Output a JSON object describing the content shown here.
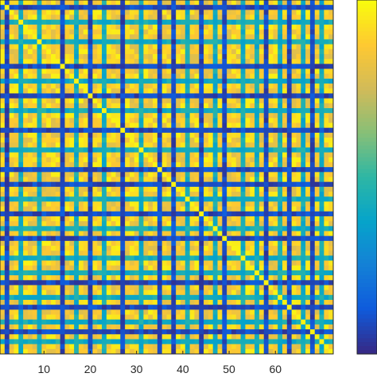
{
  "chart_data": {
    "type": "heatmap",
    "title": "",
    "xlabel": "",
    "ylabel": "",
    "n": 72,
    "x_ticks": [
      10,
      20,
      30,
      40,
      50,
      60
    ],
    "x_tick_labels": [
      "10",
      "20",
      "30",
      "40",
      "50",
      "60"
    ],
    "xlim": [
      0.5,
      72.5
    ],
    "ylim": [
      0.5,
      72.5
    ],
    "colormap": "parula",
    "colormap_stops": [
      "#352a87",
      "#0f5cdd",
      "#1481d6",
      "#06a4ca",
      "#2eb7a4",
      "#87bf77",
      "#d1bb59",
      "#fec832",
      "#f9fb0e"
    ],
    "color_range": [
      0,
      1
    ],
    "colorbar": true,
    "colorbar_tick_labels": [],
    "legend": "none",
    "values_note_rows_cols": {
      "strong_rows": [
        2,
        14,
        20,
        27,
        35,
        38,
        44,
        49,
        58,
        63,
        68
      ],
      "medium_rows": [
        5,
        9,
        17,
        23,
        31,
        41,
        47,
        53,
        56,
        61,
        66,
        70
      ],
      "strong_level": 0.08,
      "medium_level": 0.42,
      "background_level": 0.92
    }
  }
}
